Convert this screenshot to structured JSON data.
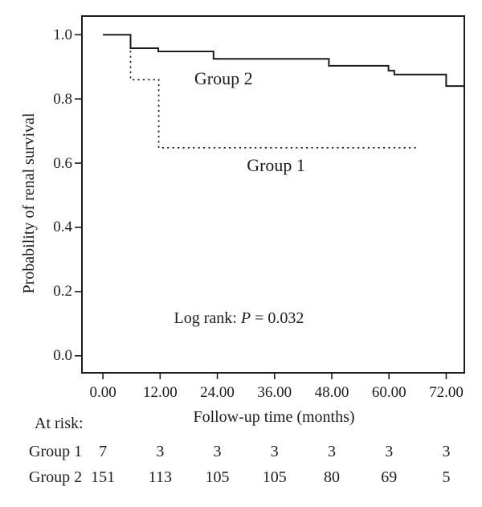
{
  "chart_data": {
    "type": "line",
    "subtype": "kaplan-meier-step",
    "title": "",
    "xlabel": "Follow-up time (months)",
    "ylabel": "Probability of renal survival",
    "x_ticks": [
      "0.00",
      "12.00",
      "24.00",
      "36.00",
      "48.00",
      "60.00",
      "72.00"
    ],
    "x_tick_values": [
      0,
      12,
      24,
      36,
      48,
      60,
      72
    ],
    "y_ticks": [
      "0.0",
      "0.2",
      "0.4",
      "0.6",
      "0.8",
      "1.0"
    ],
    "y_tick_values": [
      0,
      0.2,
      0.4,
      0.6,
      0.8,
      1.0
    ],
    "xlim": [
      -4.4,
      75.8
    ],
    "ylim": [
      -0.053,
      1.058
    ],
    "grid": false,
    "legend_position": "inline-labels",
    "annotation": {
      "prefix": "Log rank: ",
      "stat": "P",
      "rest": " = 0.032",
      "pos": {
        "x": 14.9,
        "y": 0.117
      }
    },
    "series": [
      {
        "name": "Group 2",
        "style": "solid",
        "color": "#1c1c1c",
        "label_pos": {
          "x": 25.3,
          "y": 0.862
        },
        "points": [
          [
            0,
            1.0
          ],
          [
            5.8,
            1.0
          ],
          [
            5.8,
            0.958
          ],
          [
            11.6,
            0.958
          ],
          [
            11.6,
            0.948
          ],
          [
            23.2,
            0.948
          ],
          [
            23.2,
            0.925
          ],
          [
            47.4,
            0.925
          ],
          [
            47.4,
            0.903
          ],
          [
            59.9,
            0.903
          ],
          [
            59.9,
            0.888
          ],
          [
            61.1,
            0.888
          ],
          [
            61.1,
            0.876
          ],
          [
            72,
            0.876
          ],
          [
            72,
            0.84
          ],
          [
            75.8,
            0.84
          ]
        ]
      },
      {
        "name": "Group 1",
        "style": "dotted",
        "color": "#1c1c1c",
        "label_pos": {
          "x": 36.3,
          "y": 0.592
        },
        "points": [
          [
            5.8,
            0.95
          ],
          [
            5.8,
            0.86
          ],
          [
            11.7,
            0.86
          ],
          [
            11.7,
            0.648
          ],
          [
            66.3,
            0.648
          ]
        ]
      }
    ],
    "at_risk": {
      "header": "At risk:",
      "times": [
        0,
        12,
        24,
        36,
        48,
        60,
        72
      ],
      "rows": [
        {
          "label": "Group 1",
          "values": [
            "7",
            "3",
            "3",
            "3",
            "3",
            "3",
            "3"
          ]
        },
        {
          "label": "Group 2",
          "values": [
            "151",
            "113",
            "105",
            "105",
            "80",
            "69",
            "5"
          ]
        }
      ]
    }
  },
  "colors": {
    "line": "#1c1c1c",
    "text": "#1c1c1c",
    "background": "#ffffff"
  }
}
